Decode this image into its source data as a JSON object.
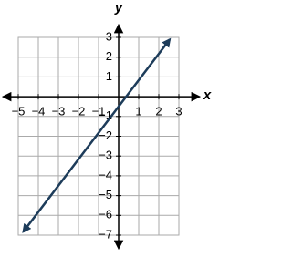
{
  "chart_data": {
    "type": "line",
    "x_label": "x",
    "y_label": "y",
    "xlim": [
      -5,
      3
    ],
    "ylim": [
      -7,
      3
    ],
    "xticks": [
      {
        "value": -5,
        "label": "−5"
      },
      {
        "value": -4,
        "label": "−4"
      },
      {
        "value": -3,
        "label": "−3"
      },
      {
        "value": -2,
        "label": "−2"
      },
      {
        "value": -1,
        "label": "−1"
      },
      1,
      2,
      3
    ],
    "yticks": [
      {
        "value": -7,
        "label": "−7"
      },
      {
        "value": -6,
        "label": "−6"
      },
      {
        "value": -5,
        "label": "−5"
      },
      {
        "value": -4,
        "label": "−4"
      },
      {
        "value": -3,
        "label": "−3"
      },
      {
        "value": -2,
        "label": "−2"
      },
      {
        "value": -1,
        "label": "−1"
      },
      1,
      2,
      3
    ],
    "grid": true,
    "series": [
      {
        "color": "#1d3c5a",
        "x": [
          -4.75,
          2.55
        ],
        "values": [
          -6.83,
          2.9
        ]
      }
    ]
  }
}
